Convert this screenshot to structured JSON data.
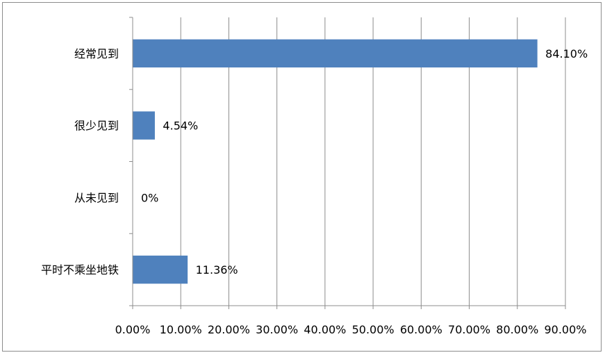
{
  "chart_data": {
    "type": "bar",
    "orientation": "horizontal",
    "categories": [
      "经常见到",
      "很少见到",
      "从未见到",
      "平时不乘坐地铁"
    ],
    "values": [
      84.1,
      4.54,
      0,
      11.36
    ],
    "data_labels": [
      "84.10%",
      "4.54%",
      "0%",
      "11.36%"
    ],
    "xlim": [
      0,
      90
    ],
    "xticks": [
      0,
      10,
      20,
      30,
      40,
      50,
      60,
      70,
      80,
      90
    ],
    "xtick_labels": [
      "0.00%",
      "10.00%",
      "20.00%",
      "30.00%",
      "40.00%",
      "50.00%",
      "60.00%",
      "70.00%",
      "80.00%",
      "90.00%"
    ],
    "grid": "vertical",
    "legend": "none",
    "bar_color": "#4f81bd",
    "grid_color": "#8c8c8c"
  }
}
